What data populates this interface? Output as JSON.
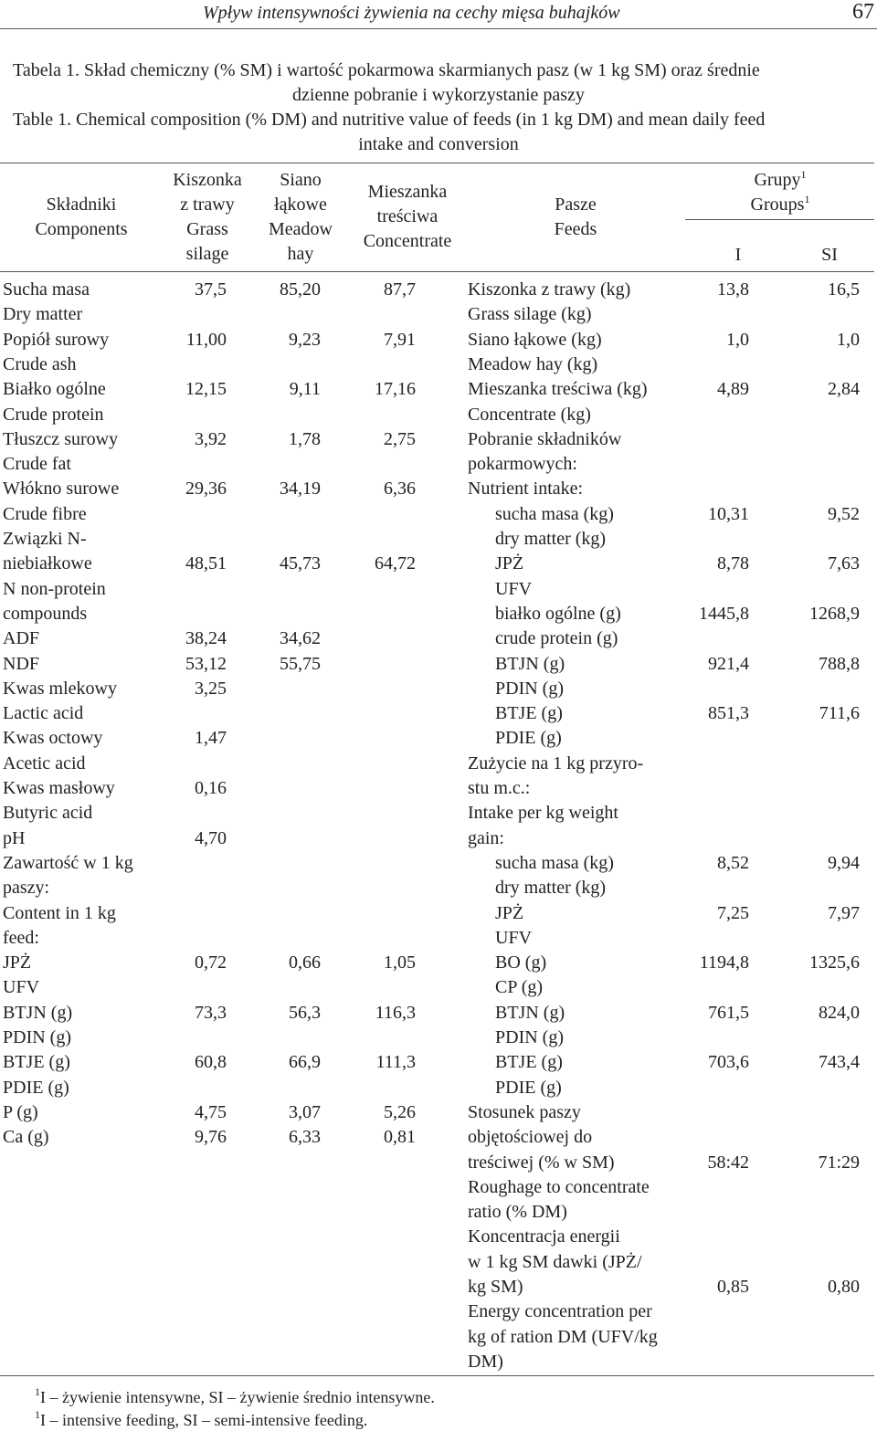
{
  "header": {
    "running_title": "Wpływ intensywności żywienia na cechy mięsa buhajków",
    "page_number": "67"
  },
  "caption": {
    "pl_line1": "Tabela 1. Skład chemiczny (% SM) i wartość pokarmowa skarmianych pasz (w 1 kg SM) oraz średnie",
    "pl_line2": "dzienne pobranie i wykorzystanie paszy",
    "en_line1": "Table 1. Chemical composition (% DM) and nutritive value of feeds (in 1 kg DM) and mean daily feed",
    "en_line2": "intake and conversion"
  },
  "table_header": {
    "components": [
      "Składniki",
      "Components"
    ],
    "grass_silage": [
      "Kiszonka",
      "z trawy",
      "Grass",
      "silage"
    ],
    "meadow_hay": [
      "Siano",
      "łąkowe",
      "Meadow",
      "hay"
    ],
    "concentrate": [
      "Mieszanka",
      "treściwa",
      "Concentrate"
    ],
    "feeds": [
      "Pasze",
      "Feeds"
    ],
    "groups_pl": "Grupy",
    "groups_en": "Groups",
    "groups_sup": "1",
    "group_i": "I",
    "group_si": "SI"
  },
  "left_rows": [
    {
      "label": "Sucha masa",
      "v1": "37,5",
      "v2": "85,20",
      "v3": "87,7"
    },
    {
      "label": "Dry matter",
      "v1": "",
      "v2": "",
      "v3": ""
    },
    {
      "label": "Popiół surowy",
      "v1": "11,00",
      "v2": "9,23",
      "v3": "7,91"
    },
    {
      "label": "Crude ash",
      "v1": "",
      "v2": "",
      "v3": ""
    },
    {
      "label": "Białko ogólne",
      "v1": "12,15",
      "v2": "9,11",
      "v3": "17,16"
    },
    {
      "label": "Crude protein",
      "v1": "",
      "v2": "",
      "v3": ""
    },
    {
      "label": "Tłuszcz surowy",
      "v1": "3,92",
      "v2": "1,78",
      "v3": "2,75"
    },
    {
      "label": "Crude fat",
      "v1": "",
      "v2": "",
      "v3": ""
    },
    {
      "label": "Włókno surowe",
      "v1": "29,36",
      "v2": "34,19",
      "v3": "6,36"
    },
    {
      "label": "Crude fibre",
      "v1": "",
      "v2": "",
      "v3": ""
    },
    {
      "label": "Związki N-",
      "v1": "",
      "v2": "",
      "v3": ""
    },
    {
      "label": "niebiałkowe",
      "v1": "48,51",
      "v2": "45,73",
      "v3": "64,72"
    },
    {
      "label": "N non-protein",
      "v1": "",
      "v2": "",
      "v3": ""
    },
    {
      "label": "compounds",
      "v1": "",
      "v2": "",
      "v3": ""
    },
    {
      "label": "ADF",
      "v1": "38,24",
      "v2": "34,62",
      "v3": ""
    },
    {
      "label": "NDF",
      "v1": "53,12",
      "v2": "55,75",
      "v3": ""
    },
    {
      "label": "Kwas mlekowy",
      "v1": "3,25",
      "v2": "",
      "v3": ""
    },
    {
      "label": "Lactic acid",
      "v1": "",
      "v2": "",
      "v3": ""
    },
    {
      "label": "Kwas octowy",
      "v1": "1,47",
      "v2": "",
      "v3": ""
    },
    {
      "label": "Acetic acid",
      "v1": "",
      "v2": "",
      "v3": ""
    },
    {
      "label": "Kwas masłowy",
      "v1": "0,16",
      "v2": "",
      "v3": ""
    },
    {
      "label": "Butyric acid",
      "v1": "",
      "v2": "",
      "v3": ""
    },
    {
      "label": "pH",
      "v1": "4,70",
      "v2": "",
      "v3": ""
    },
    {
      "label": "Zawartość w 1 kg",
      "v1": "",
      "v2": "",
      "v3": ""
    },
    {
      "label": "paszy:",
      "v1": "",
      "v2": "",
      "v3": ""
    },
    {
      "label": "Content in 1 kg",
      "v1": "",
      "v2": "",
      "v3": ""
    },
    {
      "label": "feed:",
      "v1": "",
      "v2": "",
      "v3": ""
    },
    {
      "label": "JPŻ",
      "v1": "0,72",
      "v2": "0,66",
      "v3": "1,05"
    },
    {
      "label": "UFV",
      "v1": "",
      "v2": "",
      "v3": ""
    },
    {
      "label": "BTJN (g)",
      "v1": "73,3",
      "v2": "56,3",
      "v3": "116,3"
    },
    {
      "label": "PDIN (g)",
      "v1": "",
      "v2": "",
      "v3": ""
    },
    {
      "label": "BTJE (g)",
      "v1": "60,8",
      "v2": "66,9",
      "v3": "111,3"
    },
    {
      "label": "PDIE (g)",
      "v1": "",
      "v2": "",
      "v3": ""
    },
    {
      "label": "P (g)",
      "v1": "4,75",
      "v2": "3,07",
      "v3": "5,26"
    },
    {
      "label": "Ca (g)",
      "v1": "9,76",
      "v2": "6,33",
      "v3": "0,81"
    }
  ],
  "right_rows": [
    {
      "label": "Kiszonka z trawy (kg)",
      "indent": false,
      "g1": "13,8",
      "g2": "16,5"
    },
    {
      "label": "Grass silage (kg)",
      "indent": false,
      "g1": "",
      "g2": ""
    },
    {
      "label": "Siano łąkowe (kg)",
      "indent": false,
      "g1": "1,0",
      "g2": "1,0"
    },
    {
      "label": "Meadow hay (kg)",
      "indent": false,
      "g1": "",
      "g2": ""
    },
    {
      "label": "Mieszanka treściwa (kg)",
      "indent": false,
      "g1": "4,89",
      "g2": "2,84"
    },
    {
      "label": "Concentrate (kg)",
      "indent": false,
      "g1": "",
      "g2": ""
    },
    {
      "label": "Pobranie składników",
      "indent": false,
      "g1": "",
      "g2": ""
    },
    {
      "label": "pokarmowych:",
      "indent": false,
      "g1": "",
      "g2": ""
    },
    {
      "label": "Nutrient intake:",
      "indent": false,
      "g1": "",
      "g2": ""
    },
    {
      "label": "sucha masa (kg)",
      "indent": true,
      "g1": "10,31",
      "g2": "9,52"
    },
    {
      "label": "dry matter (kg)",
      "indent": true,
      "g1": "",
      "g2": ""
    },
    {
      "label": "JPŻ",
      "indent": true,
      "g1": "8,78",
      "g2": "7,63"
    },
    {
      "label": "UFV",
      "indent": true,
      "g1": "",
      "g2": ""
    },
    {
      "label": "białko ogólne (g)",
      "indent": true,
      "g1": "1445,8",
      "g2": "1268,9"
    },
    {
      "label": "crude protein (g)",
      "indent": true,
      "g1": "",
      "g2": ""
    },
    {
      "label": "BTJN (g)",
      "indent": true,
      "g1": "921,4",
      "g2": "788,8"
    },
    {
      "label": "PDIN (g)",
      "indent": true,
      "g1": "",
      "g2": ""
    },
    {
      "label": "BTJE (g)",
      "indent": true,
      "g1": "851,3",
      "g2": "711,6"
    },
    {
      "label": "PDIE (g)",
      "indent": true,
      "g1": "",
      "g2": ""
    },
    {
      "label": "Zużycie na 1 kg przyro-",
      "indent": false,
      "g1": "",
      "g2": ""
    },
    {
      "label": "stu m.c.:",
      "indent": false,
      "g1": "",
      "g2": ""
    },
    {
      "label": "Intake per kg weight",
      "indent": false,
      "g1": "",
      "g2": ""
    },
    {
      "label": "gain:",
      "indent": false,
      "g1": "",
      "g2": ""
    },
    {
      "label": "sucha masa (kg)",
      "indent": true,
      "g1": "8,52",
      "g2": "9,94"
    },
    {
      "label": "dry matter (kg)",
      "indent": true,
      "g1": "",
      "g2": ""
    },
    {
      "label": "JPŻ",
      "indent": true,
      "g1": "7,25",
      "g2": "7,97"
    },
    {
      "label": "UFV",
      "indent": true,
      "g1": "",
      "g2": ""
    },
    {
      "label": "BO (g)",
      "indent": true,
      "g1": "1194,8",
      "g2": "1325,6"
    },
    {
      "label": "CP (g)",
      "indent": true,
      "g1": "",
      "g2": ""
    },
    {
      "label": "BTJN (g)",
      "indent": true,
      "g1": "761,5",
      "g2": "824,0"
    },
    {
      "label": "PDIN (g)",
      "indent": true,
      "g1": "",
      "g2": ""
    },
    {
      "label": "BTJE (g)",
      "indent": true,
      "g1": "703,6",
      "g2": "743,4"
    },
    {
      "label": "PDIE (g)",
      "indent": true,
      "g1": "",
      "g2": ""
    },
    {
      "label": "Stosunek  paszy",
      "indent": false,
      "g1": "",
      "g2": ""
    },
    {
      "label": "objętościowej do",
      "indent": false,
      "g1": "",
      "g2": ""
    },
    {
      "label": "treściwej (% w SM)",
      "indent": false,
      "g1": "58:42",
      "g2": "71:29"
    },
    {
      "label": "Roughage to concentrate",
      "indent": false,
      "g1": "",
      "g2": ""
    },
    {
      "label": "ratio (% DM)",
      "indent": false,
      "g1": "",
      "g2": ""
    },
    {
      "label": "Koncentracja energii",
      "indent": false,
      "g1": "",
      "g2": ""
    },
    {
      "label": "w 1 kg SM dawki (JPŻ/",
      "indent": false,
      "g1": "",
      "g2": ""
    },
    {
      "label": "kg SM)",
      "indent": false,
      "g1": "0,85",
      "g2": "0,80"
    },
    {
      "label": "Energy concentration per",
      "indent": false,
      "g1": "",
      "g2": ""
    },
    {
      "label": "kg of ration DM (UFV/kg",
      "indent": false,
      "g1": "",
      "g2": ""
    },
    {
      "label": "DM)",
      "indent": false,
      "g1": "",
      "g2": ""
    }
  ],
  "footnotes": {
    "marker": "1",
    "pl": "I – żywienie intensywne, SI – żywienie średnio intensywne.",
    "en": "I – intensive feeding, SI – semi-intensive feeding."
  }
}
